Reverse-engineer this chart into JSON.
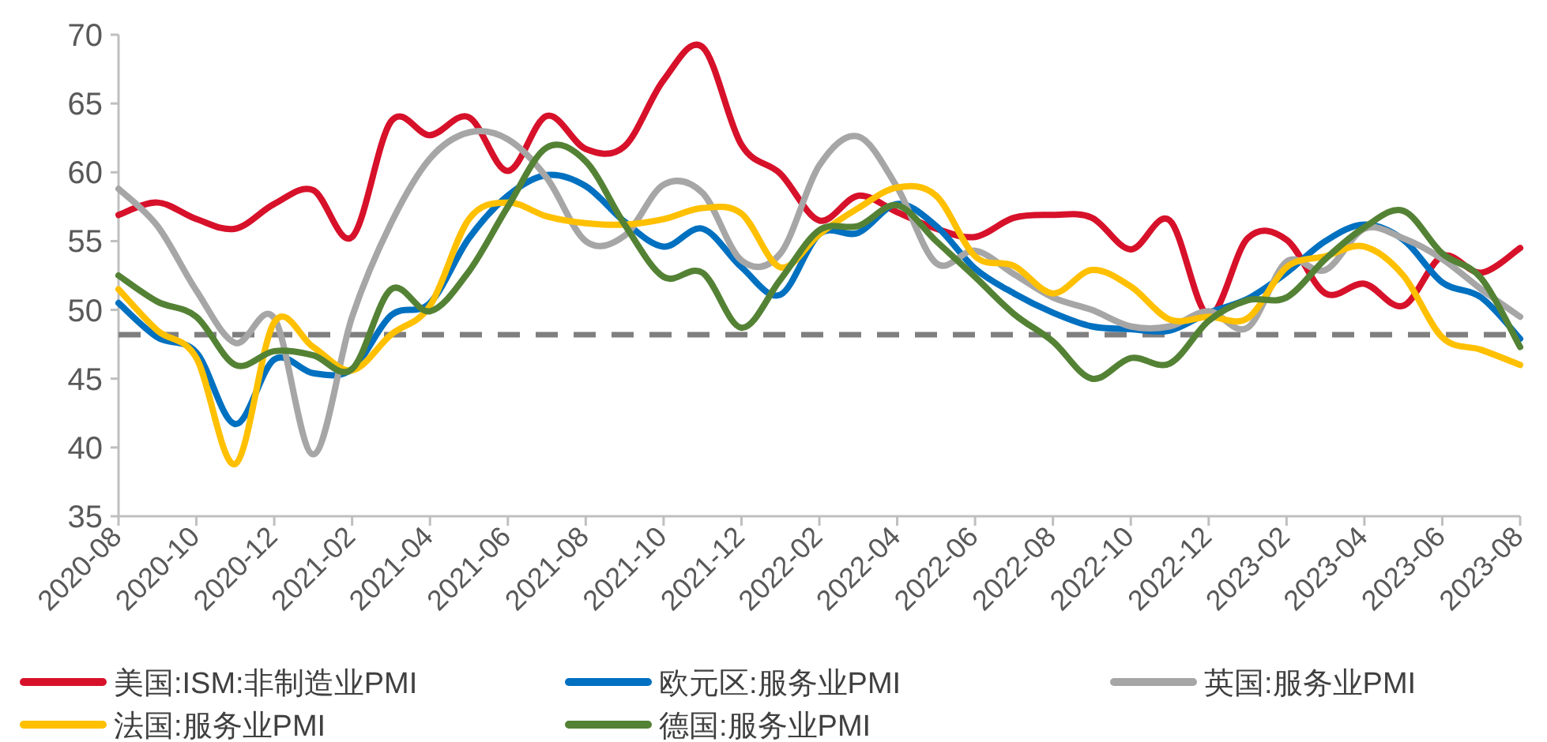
{
  "chart_data": {
    "type": "line",
    "x": [
      "2020-08",
      "2020-09",
      "2020-10",
      "2020-11",
      "2020-12",
      "2021-01",
      "2021-02",
      "2021-03",
      "2021-04",
      "2021-05",
      "2021-06",
      "2021-07",
      "2021-08",
      "2021-09",
      "2021-10",
      "2021-11",
      "2021-12",
      "2022-01",
      "2022-02",
      "2022-03",
      "2022-04",
      "2022-05",
      "2022-06",
      "2022-07",
      "2022-08",
      "2022-09",
      "2022-10",
      "2022-11",
      "2022-12",
      "2023-01",
      "2023-02",
      "2023-03",
      "2023-04",
      "2023-05",
      "2023-06",
      "2023-07",
      "2023-08"
    ],
    "series": [
      {
        "name": "美国:ISM:非制造业PMI",
        "color": "#d7112a",
        "values": [
          56.9,
          57.8,
          56.6,
          55.9,
          57.7,
          58.7,
          55.3,
          63.7,
          62.7,
          64.0,
          60.1,
          64.1,
          61.7,
          61.9,
          66.7,
          69.1,
          62.0,
          59.9,
          56.5,
          58.3,
          57.1,
          55.9,
          55.3,
          56.7,
          56.9,
          56.7,
          54.4,
          56.5,
          49.6,
          55.2,
          55.1,
          51.2,
          51.9,
          50.3,
          53.9,
          52.7,
          54.5
        ]
      },
      {
        "name": "欧元区:服务业PMI",
        "color": "#0070c0",
        "values": [
          50.5,
          48.0,
          46.9,
          41.7,
          46.4,
          45.4,
          45.7,
          49.6,
          50.5,
          55.2,
          58.3,
          59.8,
          59.0,
          56.4,
          54.6,
          55.9,
          53.1,
          51.1,
          55.5,
          55.6,
          57.7,
          56.1,
          53.0,
          51.2,
          49.8,
          48.8,
          48.6,
          48.5,
          49.8,
          50.8,
          52.7,
          55.0,
          56.2,
          55.1,
          52.0,
          50.9,
          47.9
        ]
      },
      {
        "name": "英国:服务业PMI",
        "color": "#a6a6a6",
        "values": [
          58.8,
          56.1,
          51.4,
          47.6,
          49.4,
          39.5,
          49.5,
          56.3,
          61.0,
          62.9,
          62.4,
          59.6,
          55.0,
          55.4,
          59.1,
          58.5,
          53.6,
          54.1,
          60.5,
          62.6,
          58.9,
          53.4,
          54.3,
          52.6,
          50.9,
          50.0,
          48.8,
          48.8,
          49.9,
          48.7,
          53.5,
          52.9,
          55.9,
          55.2,
          53.7,
          51.5,
          49.5
        ]
      },
      {
        "name": "法国:服务业PMI",
        "color": "#ffc000",
        "values": [
          51.5,
          48.5,
          46.5,
          38.8,
          49.1,
          47.3,
          45.6,
          48.2,
          50.3,
          56.6,
          57.8,
          56.8,
          56.3,
          56.2,
          56.6,
          57.4,
          57.0,
          53.1,
          55.5,
          57.4,
          58.9,
          58.3,
          53.9,
          53.2,
          51.2,
          52.9,
          51.7,
          49.3,
          49.5,
          49.4,
          53.1,
          53.9,
          54.6,
          52.5,
          48.0,
          47.1,
          46.0
        ]
      },
      {
        "name": "德国:服务业PMI",
        "color": "#548235",
        "values": [
          52.5,
          50.6,
          49.5,
          46.0,
          47.0,
          46.7,
          45.7,
          51.5,
          49.9,
          52.8,
          57.5,
          61.8,
          60.8,
          56.2,
          52.4,
          52.7,
          48.7,
          52.2,
          55.8,
          56.1,
          57.6,
          55.0,
          52.4,
          49.7,
          47.7,
          45.0,
          46.5,
          46.1,
          49.2,
          50.7,
          50.9,
          53.7,
          56.0,
          57.2,
          54.1,
          52.3,
          47.3
        ]
      }
    ],
    "xlim": [
      "2020-08",
      "2023-08"
    ],
    "xticks": [
      "2020-08",
      "2020-10",
      "2020-12",
      "2021-02",
      "2021-04",
      "2021-06",
      "2021-08",
      "2021-10",
      "2021-12",
      "2022-02",
      "2022-04",
      "2022-06",
      "2022-08",
      "2022-10",
      "2022-12",
      "2023-02",
      "2023-04",
      "2023-06",
      "2023-08"
    ],
    "ylim": [
      35,
      70
    ],
    "yticks": [
      35,
      40,
      45,
      50,
      55,
      60,
      65,
      70
    ],
    "ref_lines": [
      {
        "axis": "y",
        "value": 48.2,
        "color": "#7f7f7f",
        "line_style": "dashed"
      }
    ],
    "legend": "bottom"
  }
}
